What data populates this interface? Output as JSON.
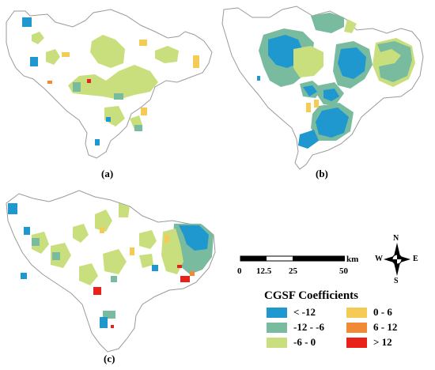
{
  "panels": [
    {
      "id": "a",
      "label": "(a)"
    },
    {
      "id": "b",
      "label": "(b)"
    },
    {
      "id": "c",
      "label": "(c)"
    }
  ],
  "legend": {
    "title": "CGSF Coefficients",
    "classes": [
      {
        "label": "< -12",
        "color": "#1f97cf"
      },
      {
        "label": "-12 - -6",
        "color": "#79bb9f"
      },
      {
        "label": "-6 - 0",
        "color": "#c9df7d"
      },
      {
        "label": "0 - 6",
        "color": "#f5cb57"
      },
      {
        "label": "6 - 12",
        "color": "#f08a36"
      },
      {
        "label": "> 12",
        "color": "#e8221a"
      }
    ]
  },
  "scale_bar": {
    "unit": "km",
    "ticks": [
      "0",
      "12.5",
      "25",
      "50"
    ]
  },
  "north_arrow": {
    "n": "N",
    "s": "S",
    "e": "E",
    "w": "W"
  },
  "colors": {
    "boundary": "#9a9a9a",
    "background": "#ffffff"
  }
}
